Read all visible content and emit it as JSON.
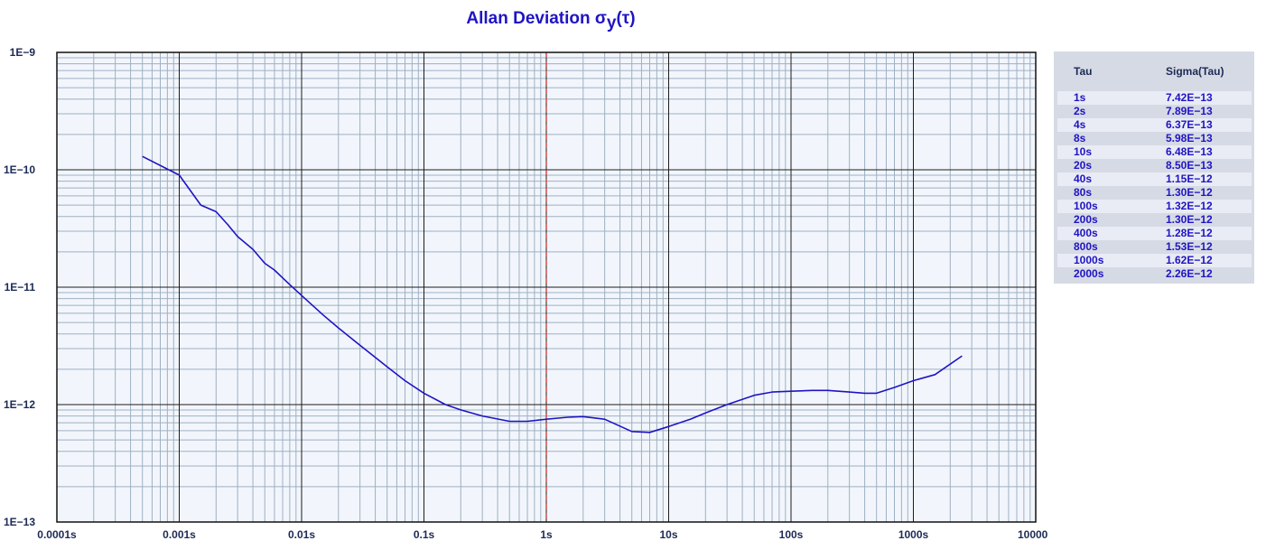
{
  "chart_data": {
    "type": "line",
    "title": "Allan Deviation σ",
    "title_sub": "y",
    "title_tail": "(τ)",
    "xlabel": "",
    "ylabel": "",
    "x_scale": "log",
    "y_scale": "log",
    "xlim": [
      0.0001,
      10000
    ],
    "ylim": [
      1e-13,
      1e-09
    ],
    "grid": true,
    "x_ticks": [
      {
        "value": 0.0001,
        "label": "0.0001s"
      },
      {
        "value": 0.001,
        "label": "0.001s"
      },
      {
        "value": 0.01,
        "label": "0.01s"
      },
      {
        "value": 0.1,
        "label": "0.1s"
      },
      {
        "value": 1,
        "label": "1s"
      },
      {
        "value": 10,
        "label": "10s"
      },
      {
        "value": 100,
        "label": "100s"
      },
      {
        "value": 1000,
        "label": "1000s"
      },
      {
        "value": 10000,
        "label": "10000s"
      }
    ],
    "y_ticks": [
      {
        "value": 1e-09,
        "label": "1E−9"
      },
      {
        "value": 1e-10,
        "label": "1E−10"
      },
      {
        "value": 1e-11,
        "label": "1E−11"
      },
      {
        "value": 1e-12,
        "label": "1E−12"
      },
      {
        "value": 1e-13,
        "label": "1E−13"
      }
    ],
    "reference_line_x": 1,
    "series": [
      {
        "color": "#1f14c4",
        "x": [
          0.0005,
          0.001,
          0.0015,
          0.002,
          0.0025,
          0.003,
          0.004,
          0.005,
          0.006,
          0.007,
          0.008,
          0.01,
          0.015,
          0.02,
          0.03,
          0.05,
          0.07,
          0.1,
          0.15,
          0.2,
          0.3,
          0.5,
          0.7,
          1,
          1.5,
          2,
          3,
          5,
          7,
          10,
          15,
          20,
          30,
          50,
          70,
          100,
          150,
          200,
          300,
          400,
          500,
          700,
          1000,
          1500,
          2500
        ],
        "y": [
          1.3e-10,
          9e-11,
          5e-11,
          4.4e-11,
          3.4e-11,
          2.7e-11,
          2.1e-11,
          1.6e-11,
          1.4e-11,
          1.2e-11,
          1.05e-11,
          8.5e-12,
          5.8e-12,
          4.5e-12,
          3.2e-12,
          2.1e-12,
          1.6e-12,
          1.25e-12,
          1e-12,
          9e-13,
          8e-13,
          7.2e-13,
          7.2e-13,
          7.5e-13,
          7.8e-13,
          7.9e-13,
          7.5e-13,
          5.9e-13,
          5.8e-13,
          6.5e-13,
          7.5e-13,
          8.5e-13,
          1e-12,
          1.2e-12,
          1.28e-12,
          1.3e-12,
          1.32e-12,
          1.32e-12,
          1.28e-12,
          1.25e-12,
          1.25e-12,
          1.4e-12,
          1.6e-12,
          1.8e-12,
          2.6e-12
        ]
      }
    ]
  },
  "table": {
    "col1": "Tau",
    "col2": "Sigma(Tau)",
    "rows": [
      {
        "tau": "1s",
        "sigma": "7.42E−13"
      },
      {
        "tau": "2s",
        "sigma": "7.89E−13"
      },
      {
        "tau": "4s",
        "sigma": "6.37E−13"
      },
      {
        "tau": "8s",
        "sigma": "5.98E−13"
      },
      {
        "tau": "10s",
        "sigma": "6.48E−13"
      },
      {
        "tau": "20s",
        "sigma": "8.50E−13"
      },
      {
        "tau": "40s",
        "sigma": "1.15E−12"
      },
      {
        "tau": "80s",
        "sigma": "1.30E−12"
      },
      {
        "tau": "100s",
        "sigma": "1.32E−12"
      },
      {
        "tau": "200s",
        "sigma": "1.30E−12"
      },
      {
        "tau": "400s",
        "sigma": "1.28E−12"
      },
      {
        "tau": "800s",
        "sigma": "1.53E−12"
      },
      {
        "tau": "1000s",
        "sigma": "1.62E−12"
      },
      {
        "tau": "2000s",
        "sigma": "2.26E−12"
      }
    ]
  },
  "colors": {
    "series": "#1f14c4",
    "reference_line": "#d02020",
    "plot_bg": "#f2f6fc",
    "grid_major": "#1c1c1c",
    "grid_minor": "#9eb0c2"
  }
}
